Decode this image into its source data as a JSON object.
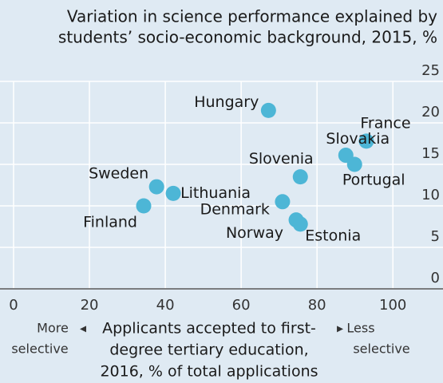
{
  "chart_data": {
    "type": "scatter",
    "title": [
      "Variation in science performance explained by",
      "students’ socio-economic background, 2015, %"
    ],
    "x_label": [
      "Applicants accepted to first-",
      "degree tertiary education,",
      "2016, % of total applications"
    ],
    "x_left_note": [
      "More",
      "selective"
    ],
    "x_right_note": [
      "Less",
      "selective"
    ],
    "color": "#4db6d6",
    "labels": [
      "Hungary",
      "France",
      "Slovakia",
      "Portugal",
      "Slovenia",
      "Sweden",
      "Lithuania",
      "Denmark",
      "Finland",
      "Norway",
      "Estonia"
    ],
    "x": [
      67.2,
      93,
      87.6,
      89.9,
      75.6,
      37.7,
      42.1,
      70.9,
      34.3,
      74.5,
      75.6
    ],
    "y": [
      21.5,
      17.8,
      16.1,
      15.0,
      13.5,
      12.3,
      11.5,
      10.5,
      10.0,
      8.3,
      7.8
    ],
    "xlim": [
      0,
      113
    ],
    "ylim": [
      0,
      25
    ],
    "xticks": [
      0,
      20,
      40,
      60,
      80,
      100
    ],
    "yticks": [
      0,
      5,
      10,
      15,
      20,
      25
    ],
    "grid": true
  }
}
